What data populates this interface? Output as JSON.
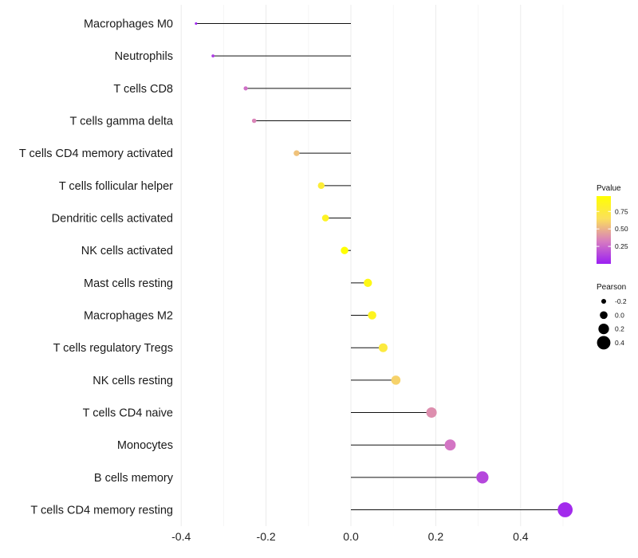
{
  "chart_data": {
    "type": "lollipop",
    "title": "",
    "xlabel": "",
    "ylabel": "",
    "xlim": [
      -0.42,
      0.52
    ],
    "x_ticks": [
      -0.4,
      -0.2,
      0.0,
      0.2,
      0.4
    ],
    "x_tick_labels": [
      "-0.4",
      "-0.2",
      "0.0",
      "0.2",
      "0.4"
    ],
    "baseline": 0,
    "categories": [
      "Macrophages M0",
      "Neutrophils",
      "T cells CD8",
      "T cells gamma delta",
      "T cells CD4 memory activated",
      "T cells follicular helper",
      "Dendritic cells activated",
      "NK cells activated",
      "Mast cells resting",
      "Macrophages M2",
      "T cells regulatory  Tregs ",
      "NK cells resting",
      "T cells CD4 naive",
      "Monocytes",
      "B cells memory",
      "T cells CD4 memory resting"
    ],
    "pearson": [
      -0.365,
      -0.325,
      -0.248,
      -0.228,
      -0.128,
      -0.07,
      -0.06,
      -0.015,
      0.04,
      0.05,
      0.076,
      0.106,
      0.19,
      0.234,
      0.31,
      0.505
    ],
    "pvalue": [
      0.02,
      0.1,
      0.28,
      0.35,
      0.55,
      0.78,
      0.85,
      0.97,
      0.9,
      0.86,
      0.75,
      0.6,
      0.38,
      0.3,
      0.14,
      0.04
    ],
    "legend": {
      "pvalue": {
        "title": "Pvalue",
        "ticks": [
          0.25,
          0.5,
          0.75
        ],
        "tick_labels": [
          "0.25",
          "0.50",
          "0.75"
        ],
        "range": [
          0.0,
          0.97
        ],
        "colors": [
          "#9b1ff2",
          "#d77cc0",
          "#fbe05c",
          "#ffff00"
        ]
      },
      "pearson": {
        "title": "Pearson",
        "values": [
          -0.2,
          0.0,
          0.2,
          0.4
        ],
        "labels": [
          "-0.2",
          "0.0",
          "0.2",
          "0.4"
        ]
      },
      "placement": "right"
    },
    "grid": true
  }
}
